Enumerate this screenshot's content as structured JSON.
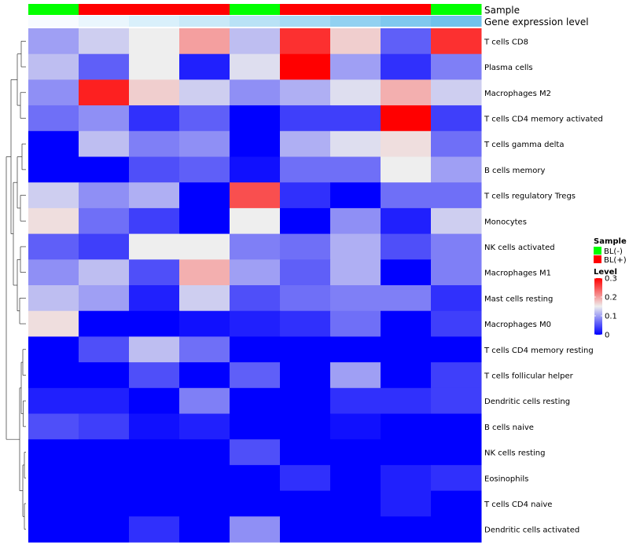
{
  "chart_data": {
    "type": "heatmap",
    "track_labels": {
      "sample": "Sample",
      "gene_expression": "Gene expression level"
    },
    "sample_track": [
      "BL(-)",
      "BL(+)",
      "BL(+)",
      "BL(+)",
      "BL(-)",
      "BL(+)",
      "BL(+)",
      "BL(+)",
      "BL(-)"
    ],
    "gene_expression_track": [
      0.02,
      0.05,
      0.15,
      0.2,
      0.3,
      0.4,
      0.5,
      0.55,
      0.6
    ],
    "gene_expression_colors": [
      "#f7fbff",
      "#eaf6fd",
      "#d9f0fb",
      "#c9e9f8",
      "#b9e2f6",
      "#a6daf4",
      "#92d1f1",
      "#7fc8ee",
      "#70c2ec"
    ],
    "rows": [
      "T cells CD8",
      "Plasma cells",
      "Macrophages M2",
      "T cells CD4 memory activated",
      "T cells gamma delta",
      "B cells memory",
      "T cells regulatory  Tregs",
      "Monocytes",
      "NK cells activated",
      "Macrophages M1",
      "Mast cells resting",
      "Macrophages M0",
      "T cells CD4 memory resting",
      "T cells follicular helper",
      "Dendritic cells resting",
      "B cells naive",
      "NK cells resting",
      "Eosinophils",
      "T cells CD4 naive",
      "Dendritic cells activated"
    ],
    "values": [
      [
        0.1,
        0.13,
        0.15,
        0.2,
        0.12,
        0.27,
        0.17,
        0.06,
        0.27
      ],
      [
        0.12,
        0.06,
        0.15,
        0.02,
        0.14,
        0.3,
        0.1,
        0.03,
        0.08
      ],
      [
        0.09,
        0.28,
        0.17,
        0.13,
        0.09,
        0.11,
        0.14,
        0.19,
        0.13
      ],
      [
        0.07,
        0.09,
        0.03,
        0.06,
        0.0,
        0.04,
        0.04,
        0.3,
        0.04
      ],
      [
        0.0,
        0.12,
        0.08,
        0.09,
        0.0,
        0.11,
        0.14,
        0.16,
        0.07
      ],
      [
        0.0,
        0.0,
        0.05,
        0.06,
        0.01,
        0.07,
        0.07,
        0.15,
        0.1
      ],
      [
        0.13,
        0.09,
        0.11,
        0.0,
        0.25,
        0.03,
        0.0,
        0.07,
        0.07
      ],
      [
        0.16,
        0.07,
        0.04,
        0.0,
        0.15,
        0.0,
        0.09,
        0.02,
        0.13
      ],
      [
        0.06,
        0.04,
        0.15,
        0.15,
        0.08,
        0.07,
        0.11,
        0.05,
        0.08
      ],
      [
        0.09,
        0.12,
        0.05,
        0.19,
        0.1,
        0.06,
        0.11,
        0.0,
        0.08
      ],
      [
        0.12,
        0.1,
        0.02,
        0.13,
        0.05,
        0.07,
        0.08,
        0.08,
        0.03
      ],
      [
        0.16,
        0.0,
        0.0,
        0.01,
        0.02,
        0.03,
        0.07,
        0.0,
        0.04
      ],
      [
        0.0,
        0.05,
        0.12,
        0.07,
        0.0,
        0.0,
        0.0,
        0.0,
        0.0
      ],
      [
        0.0,
        0.0,
        0.05,
        0.0,
        0.06,
        0.0,
        0.1,
        0.0,
        0.04
      ],
      [
        0.02,
        0.02,
        0.0,
        0.08,
        0.0,
        0.0,
        0.03,
        0.03,
        0.04
      ],
      [
        0.05,
        0.04,
        0.01,
        0.02,
        0.0,
        0.0,
        0.01,
        0.0,
        0.0
      ],
      [
        0.0,
        0.0,
        0.0,
        0.0,
        0.05,
        0.0,
        0.0,
        0.0,
        0.0
      ],
      [
        0.0,
        0.0,
        0.0,
        0.0,
        0.0,
        0.03,
        0.0,
        0.02,
        0.03
      ],
      [
        0.0,
        0.0,
        0.0,
        0.0,
        0.0,
        0.0,
        0.0,
        0.02,
        0.0
      ],
      [
        0.0,
        0.0,
        0.03,
        0.0,
        0.09,
        0.0,
        0.0,
        0.0,
        0.0
      ]
    ],
    "color_scale": {
      "min_value": 0,
      "mid_value": 0.15,
      "max_value": 0.3,
      "low": "#0000ff",
      "mid": "#eeeeee",
      "high": "#ff0000"
    },
    "sample_colors": {
      "BL(-)": "#00ff00",
      "BL(+)": "#ff0000"
    },
    "legend": {
      "sample_title": "Sample",
      "sample_entries": [
        "BL(-)",
        "BL(+)"
      ],
      "level_title": "Level",
      "level_ticks": [
        "0.3",
        "0.2",
        "0.1",
        "0"
      ],
      "level_tick_values": [
        0.3,
        0.2,
        0.1,
        0
      ]
    },
    "dendrogram": "left"
  }
}
